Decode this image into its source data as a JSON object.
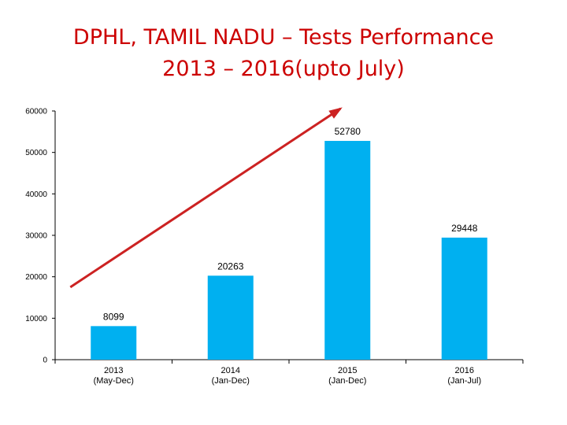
{
  "title_line1": "DPHL, TAMIL NADU – Tests Performance",
  "title_line2": "2013 – 2016(upto July)",
  "colors": {
    "title": "#cc0000",
    "bar": "#00b0f0",
    "trend_arrow": "#cc2222"
  },
  "chart_data": {
    "type": "bar",
    "categories": [
      [
        "2013",
        "(May-Dec)"
      ],
      [
        "2014",
        "(Jan-Dec)"
      ],
      [
        "2015",
        "(Jan-Dec)"
      ],
      [
        "2016",
        "(Jan-Jul)"
      ]
    ],
    "values": [
      8099,
      20263,
      52780,
      29448
    ],
    "ylim": [
      0,
      60000
    ],
    "yticks": [
      0,
      10000,
      20000,
      30000,
      40000,
      50000,
      60000
    ],
    "data_labels": [
      "8099",
      "20263",
      "52780",
      "29448"
    ],
    "grid": false,
    "legend": "none",
    "annotations": [
      {
        "type": "trend-arrow",
        "from_category": 0,
        "from_value": 17500,
        "to_category": 2,
        "to_value": 60000
      }
    ]
  }
}
